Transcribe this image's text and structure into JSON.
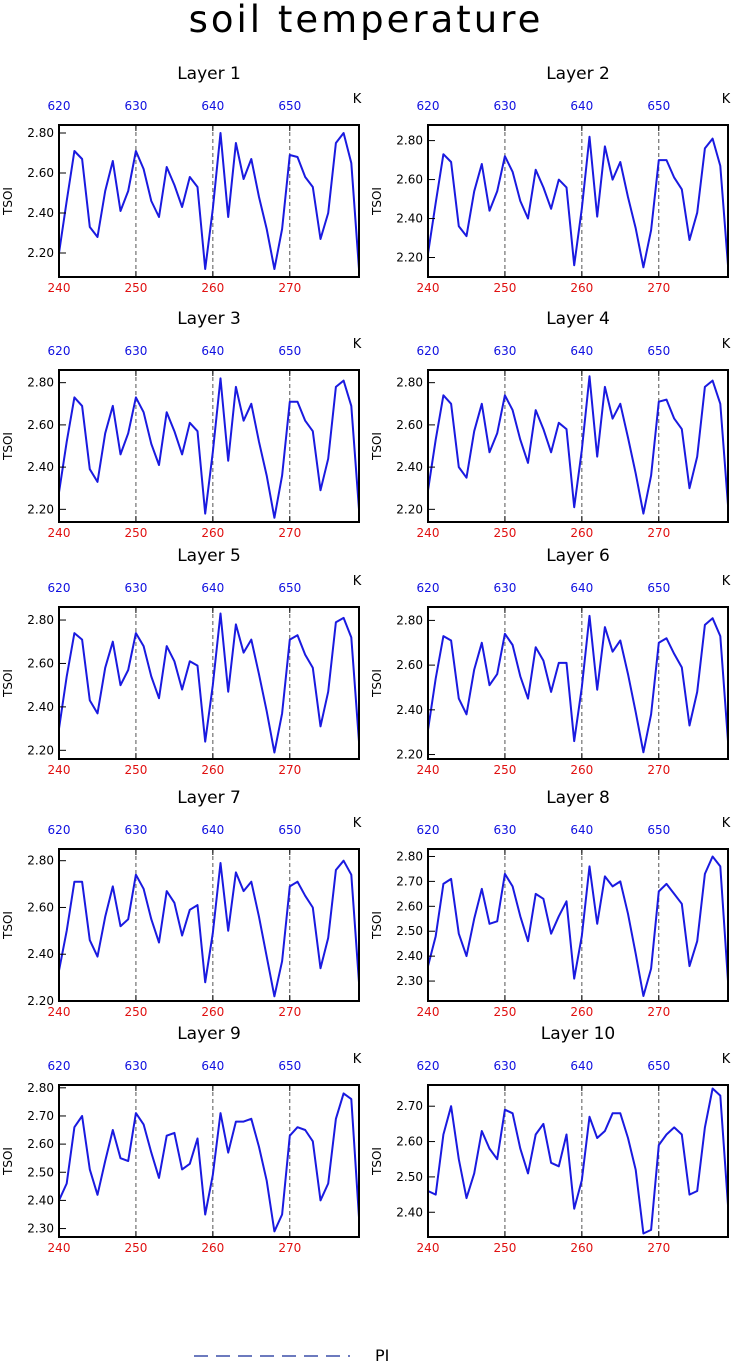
{
  "title": "soil temperature",
  "legend": {
    "label": "PI",
    "color": "#3b4fa8"
  },
  "colors": {
    "line": "#1a1ae0",
    "bottom_ticks": "#e01010",
    "top_ticks": "#1010e0",
    "frame": "#000000",
    "vline": "#555555"
  },
  "chart_data": [
    {
      "type": "line",
      "panel_title": "Layer 1",
      "ylabel": "TSOI",
      "top_unit": "K",
      "xlim": [
        240,
        279
      ],
      "ylim": [
        2.08,
        2.84
      ],
      "x_ticks": [
        240,
        250,
        260,
        270
      ],
      "top_ticks": [
        "620",
        "630",
        "640",
        "650"
      ],
      "y_ticks": [
        "2.20",
        "2.40",
        "2.60",
        "2.80"
      ],
      "y_tick_values": [
        2.2,
        2.4,
        2.6,
        2.8
      ],
      "vlines": [
        250,
        260,
        270
      ],
      "x": [
        240,
        241,
        242,
        243,
        244,
        245,
        246,
        247,
        248,
        249,
        250,
        251,
        252,
        253,
        254,
        255,
        256,
        257,
        258,
        259,
        260,
        261,
        262,
        263,
        264,
        265,
        266,
        267,
        268,
        269,
        270,
        271,
        272,
        273,
        274,
        275,
        276,
        277,
        278,
        279
      ],
      "series": [
        {
          "values": [
            2.2,
            2.46,
            2.71,
            2.67,
            2.33,
            2.28,
            2.51,
            2.66,
            2.41,
            2.51,
            2.71,
            2.62,
            2.46,
            2.38,
            2.63,
            2.54,
            2.43,
            2.58,
            2.53,
            2.12,
            2.42,
            2.8,
            2.38,
            2.75,
            2.57,
            2.67,
            2.48,
            2.32,
            2.12,
            2.32,
            2.69,
            2.68,
            2.58,
            2.53,
            2.27,
            2.4,
            2.75,
            2.8,
            2.65,
            2.12
          ]
        }
      ]
    },
    {
      "type": "line",
      "panel_title": "Layer 2",
      "ylabel": "TSOI",
      "top_unit": "K",
      "xlim": [
        240,
        279
      ],
      "ylim": [
        2.1,
        2.88
      ],
      "x_ticks": [
        240,
        250,
        260,
        270
      ],
      "top_ticks": [
        "620",
        "630",
        "640",
        "650"
      ],
      "y_ticks": [
        "2.20",
        "2.40",
        "2.60",
        "2.80"
      ],
      "y_tick_values": [
        2.2,
        2.4,
        2.6,
        2.8
      ],
      "vlines": [
        250,
        260,
        270
      ],
      "x": [
        240,
        241,
        242,
        243,
        244,
        245,
        246,
        247,
        248,
        249,
        250,
        251,
        252,
        253,
        254,
        255,
        256,
        257,
        258,
        259,
        260,
        261,
        262,
        263,
        264,
        265,
        266,
        267,
        268,
        269,
        270,
        271,
        272,
        273,
        274,
        275,
        276,
        277,
        278,
        279
      ],
      "series": [
        {
          "values": [
            2.22,
            2.48,
            2.73,
            2.69,
            2.36,
            2.31,
            2.54,
            2.68,
            2.44,
            2.54,
            2.72,
            2.64,
            2.49,
            2.4,
            2.65,
            2.56,
            2.45,
            2.6,
            2.56,
            2.16,
            2.45,
            2.82,
            2.41,
            2.77,
            2.6,
            2.69,
            2.51,
            2.35,
            2.15,
            2.34,
            2.7,
            2.7,
            2.61,
            2.55,
            2.29,
            2.43,
            2.76,
            2.81,
            2.67,
            2.16
          ]
        }
      ]
    },
    {
      "type": "line",
      "panel_title": "Layer 3",
      "ylabel": "TSOI",
      "top_unit": "K",
      "xlim": [
        240,
        279
      ],
      "ylim": [
        2.14,
        2.86
      ],
      "x_ticks": [
        240,
        250,
        260,
        270
      ],
      "top_ticks": [
        "620",
        "630",
        "640",
        "650"
      ],
      "y_ticks": [
        "2.20",
        "2.40",
        "2.60",
        "2.80"
      ],
      "y_tick_values": [
        2.2,
        2.4,
        2.6,
        2.8
      ],
      "vlines": [
        250,
        260,
        270
      ],
      "x": [
        240,
        241,
        242,
        243,
        244,
        245,
        246,
        247,
        248,
        249,
        250,
        251,
        252,
        253,
        254,
        255,
        256,
        257,
        258,
        259,
        260,
        261,
        262,
        263,
        264,
        265,
        266,
        267,
        268,
        269,
        270,
        271,
        272,
        273,
        274,
        275,
        276,
        277,
        278,
        279
      ],
      "series": [
        {
          "values": [
            2.28,
            2.52,
            2.73,
            2.69,
            2.39,
            2.33,
            2.56,
            2.69,
            2.46,
            2.56,
            2.73,
            2.66,
            2.51,
            2.41,
            2.66,
            2.57,
            2.46,
            2.61,
            2.57,
            2.18,
            2.47,
            2.82,
            2.43,
            2.78,
            2.62,
            2.7,
            2.52,
            2.36,
            2.16,
            2.36,
            2.71,
            2.71,
            2.62,
            2.57,
            2.29,
            2.44,
            2.78,
            2.81,
            2.69,
            2.2
          ]
        }
      ]
    },
    {
      "type": "line",
      "panel_title": "Layer 4",
      "ylabel": "TSOI",
      "top_unit": "K",
      "xlim": [
        240,
        279
      ],
      "ylim": [
        2.14,
        2.86
      ],
      "x_ticks": [
        240,
        250,
        260,
        270
      ],
      "top_ticks": [
        "620",
        "630",
        "640",
        "650"
      ],
      "y_ticks": [
        "2.20",
        "2.40",
        "2.60",
        "2.80"
      ],
      "y_tick_values": [
        2.2,
        2.4,
        2.6,
        2.8
      ],
      "vlines": [
        250,
        260,
        270
      ],
      "x": [
        240,
        241,
        242,
        243,
        244,
        245,
        246,
        247,
        248,
        249,
        250,
        251,
        252,
        253,
        254,
        255,
        256,
        257,
        258,
        259,
        260,
        261,
        262,
        263,
        264,
        265,
        266,
        267,
        268,
        269,
        270,
        271,
        272,
        273,
        274,
        275,
        276,
        277,
        278,
        279
      ],
      "series": [
        {
          "values": [
            2.29,
            2.53,
            2.74,
            2.7,
            2.4,
            2.35,
            2.57,
            2.7,
            2.47,
            2.56,
            2.74,
            2.67,
            2.53,
            2.42,
            2.67,
            2.58,
            2.47,
            2.61,
            2.58,
            2.21,
            2.48,
            2.83,
            2.45,
            2.78,
            2.63,
            2.7,
            2.54,
            2.37,
            2.18,
            2.36,
            2.71,
            2.72,
            2.63,
            2.58,
            2.3,
            2.45,
            2.78,
            2.81,
            2.7,
            2.22
          ]
        }
      ]
    },
    {
      "type": "line",
      "panel_title": "Layer 5",
      "ylabel": "TSOI",
      "top_unit": "K",
      "xlim": [
        240,
        279
      ],
      "ylim": [
        2.16,
        2.86
      ],
      "x_ticks": [
        240,
        250,
        260,
        270
      ],
      "top_ticks": [
        "620",
        "630",
        "640",
        "650"
      ],
      "y_ticks": [
        "2.20",
        "2.40",
        "2.60",
        "2.80"
      ],
      "y_tick_values": [
        2.2,
        2.4,
        2.6,
        2.8
      ],
      "vlines": [
        250,
        260,
        270
      ],
      "x": [
        240,
        241,
        242,
        243,
        244,
        245,
        246,
        247,
        248,
        249,
        250,
        251,
        252,
        253,
        254,
        255,
        256,
        257,
        258,
        259,
        260,
        261,
        262,
        263,
        264,
        265,
        266,
        267,
        268,
        269,
        270,
        271,
        272,
        273,
        274,
        275,
        276,
        277,
        278,
        279
      ],
      "series": [
        {
          "values": [
            2.3,
            2.54,
            2.74,
            2.71,
            2.43,
            2.37,
            2.58,
            2.7,
            2.5,
            2.57,
            2.74,
            2.68,
            2.54,
            2.44,
            2.68,
            2.61,
            2.48,
            2.61,
            2.59,
            2.24,
            2.5,
            2.83,
            2.47,
            2.78,
            2.65,
            2.71,
            2.55,
            2.38,
            2.19,
            2.37,
            2.71,
            2.73,
            2.64,
            2.58,
            2.31,
            2.47,
            2.79,
            2.81,
            2.72,
            2.24
          ]
        }
      ]
    },
    {
      "type": "line",
      "panel_title": "Layer 6",
      "ylabel": "TSOI",
      "top_unit": "K",
      "xlim": [
        240,
        279
      ],
      "ylim": [
        2.18,
        2.86
      ],
      "x_ticks": [
        240,
        250,
        260,
        270
      ],
      "top_ticks": [
        "620",
        "630",
        "640",
        "650"
      ],
      "y_ticks": [
        "2.20",
        "2.40",
        "2.60",
        "2.80"
      ],
      "y_tick_values": [
        2.2,
        2.4,
        2.6,
        2.8
      ],
      "vlines": [
        250,
        260,
        270
      ],
      "x": [
        240,
        241,
        242,
        243,
        244,
        245,
        246,
        247,
        248,
        249,
        250,
        251,
        252,
        253,
        254,
        255,
        256,
        257,
        258,
        259,
        260,
        261,
        262,
        263,
        264,
        265,
        266,
        267,
        268,
        269,
        270,
        271,
        272,
        273,
        274,
        275,
        276,
        277,
        278,
        279
      ],
      "series": [
        {
          "values": [
            2.31,
            2.54,
            2.73,
            2.71,
            2.45,
            2.38,
            2.58,
            2.7,
            2.51,
            2.56,
            2.74,
            2.69,
            2.55,
            2.45,
            2.68,
            2.62,
            2.48,
            2.61,
            2.61,
            2.26,
            2.5,
            2.82,
            2.49,
            2.77,
            2.66,
            2.71,
            2.56,
            2.39,
            2.21,
            2.38,
            2.7,
            2.72,
            2.65,
            2.59,
            2.33,
            2.48,
            2.78,
            2.81,
            2.73,
            2.26
          ]
        }
      ]
    },
    {
      "type": "line",
      "panel_title": "Layer 7",
      "ylabel": "TSOI",
      "top_unit": "K",
      "xlim": [
        240,
        279
      ],
      "ylim": [
        2.2,
        2.85
      ],
      "x_ticks": [
        240,
        250,
        260,
        270
      ],
      "top_ticks": [
        "620",
        "630",
        "640",
        "650"
      ],
      "y_ticks": [
        "2.20",
        "2.40",
        "2.60",
        "2.80"
      ],
      "y_tick_values": [
        2.2,
        2.4,
        2.6,
        2.8
      ],
      "vlines": [
        250,
        260,
        270
      ],
      "x": [
        240,
        241,
        242,
        243,
        244,
        245,
        246,
        247,
        248,
        249,
        250,
        251,
        252,
        253,
        254,
        255,
        256,
        257,
        258,
        259,
        260,
        261,
        262,
        263,
        264,
        265,
        266,
        267,
        268,
        269,
        270,
        271,
        272,
        273,
        274,
        275,
        276,
        277,
        278,
        279
      ],
      "series": [
        {
          "values": [
            2.33,
            2.5,
            2.71,
            2.71,
            2.46,
            2.39,
            2.56,
            2.69,
            2.52,
            2.55,
            2.74,
            2.68,
            2.55,
            2.45,
            2.67,
            2.62,
            2.48,
            2.59,
            2.61,
            2.28,
            2.49,
            2.79,
            2.5,
            2.75,
            2.67,
            2.71,
            2.56,
            2.39,
            2.22,
            2.37,
            2.69,
            2.71,
            2.65,
            2.6,
            2.34,
            2.47,
            2.76,
            2.8,
            2.74,
            2.28
          ]
        }
      ]
    },
    {
      "type": "line",
      "panel_title": "Layer 8",
      "ylabel": "TSOI",
      "top_unit": "K",
      "xlim": [
        240,
        279
      ],
      "ylim": [
        2.22,
        2.83
      ],
      "x_ticks": [
        240,
        250,
        260,
        270
      ],
      "top_ticks": [
        "620",
        "630",
        "640",
        "650"
      ],
      "y_ticks": [
        "2.30",
        "2.40",
        "2.50",
        "2.60",
        "2.70",
        "2.80"
      ],
      "y_tick_values": [
        2.3,
        2.4,
        2.5,
        2.6,
        2.7,
        2.8
      ],
      "vlines": [
        250,
        260,
        270
      ],
      "x": [
        240,
        241,
        242,
        243,
        244,
        245,
        246,
        247,
        248,
        249,
        250,
        251,
        252,
        253,
        254,
        255,
        256,
        257,
        258,
        259,
        260,
        261,
        262,
        263,
        264,
        265,
        266,
        267,
        268,
        269,
        270,
        271,
        272,
        273,
        274,
        275,
        276,
        277,
        278,
        279
      ],
      "series": [
        {
          "values": [
            2.36,
            2.48,
            2.69,
            2.71,
            2.49,
            2.4,
            2.55,
            2.67,
            2.53,
            2.54,
            2.73,
            2.68,
            2.56,
            2.46,
            2.65,
            2.63,
            2.49,
            2.56,
            2.62,
            2.31,
            2.48,
            2.76,
            2.53,
            2.72,
            2.68,
            2.7,
            2.57,
            2.41,
            2.24,
            2.35,
            2.66,
            2.69,
            2.65,
            2.61,
            2.36,
            2.46,
            2.73,
            2.8,
            2.76,
            2.3
          ]
        }
      ]
    },
    {
      "type": "line",
      "panel_title": "Layer 9",
      "ylabel": "TSOI",
      "top_unit": "K",
      "xlim": [
        240,
        279
      ],
      "ylim": [
        2.27,
        2.81
      ],
      "x_ticks": [
        240,
        250,
        260,
        270
      ],
      "top_ticks": [
        "620",
        "630",
        "640",
        "650"
      ],
      "y_ticks": [
        "2.30",
        "2.40",
        "2.50",
        "2.60",
        "2.70",
        "2.80"
      ],
      "y_tick_values": [
        2.3,
        2.4,
        2.5,
        2.6,
        2.7,
        2.8
      ],
      "vlines": [
        250,
        260,
        270
      ],
      "x": [
        240,
        241,
        242,
        243,
        244,
        245,
        246,
        247,
        248,
        249,
        250,
        251,
        252,
        253,
        254,
        255,
        256,
        257,
        258,
        259,
        260,
        261,
        262,
        263,
        264,
        265,
        266,
        267,
        268,
        269,
        270,
        271,
        272,
        273,
        274,
        275,
        276,
        277,
        278,
        279
      ],
      "series": [
        {
          "values": [
            2.4,
            2.46,
            2.66,
            2.7,
            2.51,
            2.42,
            2.54,
            2.65,
            2.55,
            2.54,
            2.71,
            2.67,
            2.57,
            2.48,
            2.63,
            2.64,
            2.51,
            2.53,
            2.62,
            2.35,
            2.49,
            2.71,
            2.57,
            2.68,
            2.68,
            2.69,
            2.59,
            2.47,
            2.29,
            2.35,
            2.63,
            2.66,
            2.65,
            2.61,
            2.4,
            2.46,
            2.69,
            2.78,
            2.76,
            2.34
          ]
        }
      ]
    },
    {
      "type": "line",
      "panel_title": "Layer 10",
      "ylabel": "TSOI",
      "top_unit": "K",
      "xlim": [
        240,
        279
      ],
      "ylim": [
        2.33,
        2.76
      ],
      "x_ticks": [
        240,
        250,
        260,
        270
      ],
      "top_ticks": [
        "620",
        "630",
        "640",
        "650"
      ],
      "y_ticks": [
        "2.40",
        "2.50",
        "2.60",
        "2.70"
      ],
      "y_tick_values": [
        2.4,
        2.5,
        2.6,
        2.7
      ],
      "vlines": [
        250,
        260,
        270
      ],
      "x": [
        240,
        241,
        242,
        243,
        244,
        245,
        246,
        247,
        248,
        249,
        250,
        251,
        252,
        253,
        254,
        255,
        256,
        257,
        258,
        259,
        260,
        261,
        262,
        263,
        264,
        265,
        266,
        267,
        268,
        269,
        270,
        271,
        272,
        273,
        274,
        275,
        276,
        277,
        278,
        279
      ],
      "series": [
        {
          "values": [
            2.46,
            2.45,
            2.62,
            2.7,
            2.55,
            2.44,
            2.51,
            2.63,
            2.58,
            2.55,
            2.69,
            2.68,
            2.58,
            2.51,
            2.62,
            2.65,
            2.54,
            2.53,
            2.62,
            2.41,
            2.49,
            2.67,
            2.61,
            2.63,
            2.68,
            2.68,
            2.61,
            2.52,
            2.34,
            2.35,
            2.59,
            2.62,
            2.64,
            2.62,
            2.45,
            2.46,
            2.64,
            2.75,
            2.73,
            2.42
          ]
        }
      ]
    }
  ]
}
